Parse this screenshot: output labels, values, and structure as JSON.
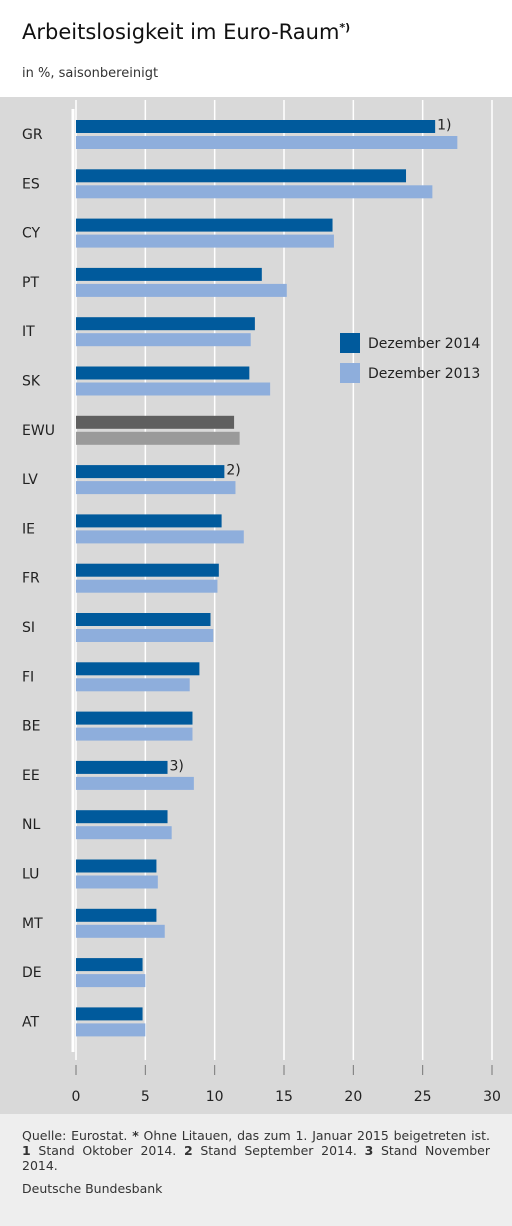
{
  "chart_data": {
    "type": "hbar",
    "title": "Arbeitslosigkeit im Euro-Raum",
    "title_note": "*)",
    "subtitle": "in %, saisonbereinigt",
    "categories": [
      "GR",
      "ES",
      "CY",
      "PT",
      "IT",
      "SK",
      "EWU",
      "LV",
      "IE",
      "FR",
      "SI",
      "FI",
      "BE",
      "EE",
      "NL",
      "LU",
      "MT",
      "DE",
      "AT"
    ],
    "series": [
      {
        "name": "Dezember 2014",
        "color": "#005a9c",
        "values": [
          25.9,
          23.8,
          18.5,
          13.4,
          12.9,
          12.5,
          11.4,
          10.7,
          10.5,
          10.3,
          9.7,
          8.9,
          8.4,
          6.6,
          6.6,
          5.8,
          5.8,
          4.8,
          4.8
        ]
      },
      {
        "name": "Dezember 2013",
        "color": "#8eaedc",
        "values": [
          27.5,
          25.7,
          18.6,
          15.2,
          12.6,
          14.0,
          11.8,
          11.5,
          12.1,
          10.2,
          9.9,
          8.2,
          8.4,
          8.5,
          6.9,
          5.9,
          6.4,
          5.0,
          5.0
        ]
      }
    ],
    "highlight": {
      "index": 6,
      "colors": [
        "#5f5f5f",
        "#9a9a9a"
      ]
    },
    "bar_notes": [
      {
        "index": 0,
        "text": "1)"
      },
      {
        "index": 7,
        "text": "2)"
      },
      {
        "index": 13,
        "text": "3)"
      }
    ],
    "xlim": [
      0,
      30
    ],
    "xticks": [
      0,
      5,
      10,
      15,
      20,
      25,
      30
    ],
    "grid": true,
    "legend": "right"
  },
  "footer": {
    "source": [
      {
        "text": "Quelle: Eurostat. "
      },
      {
        "text": "*",
        "bold": true
      },
      {
        "text": " Ohne Litauen, das zum 1. Januar 2015 beigetreten ist. "
      },
      {
        "text": "1",
        "bold": true
      },
      {
        "text": " Stand Oktober 2014. "
      },
      {
        "text": "2",
        "bold": true
      },
      {
        "text": " Stand September 2014. "
      },
      {
        "text": "3",
        "bold": true
      },
      {
        "text": " Stand November 2014."
      }
    ],
    "publisher": "Deutsche Bundesbank"
  }
}
